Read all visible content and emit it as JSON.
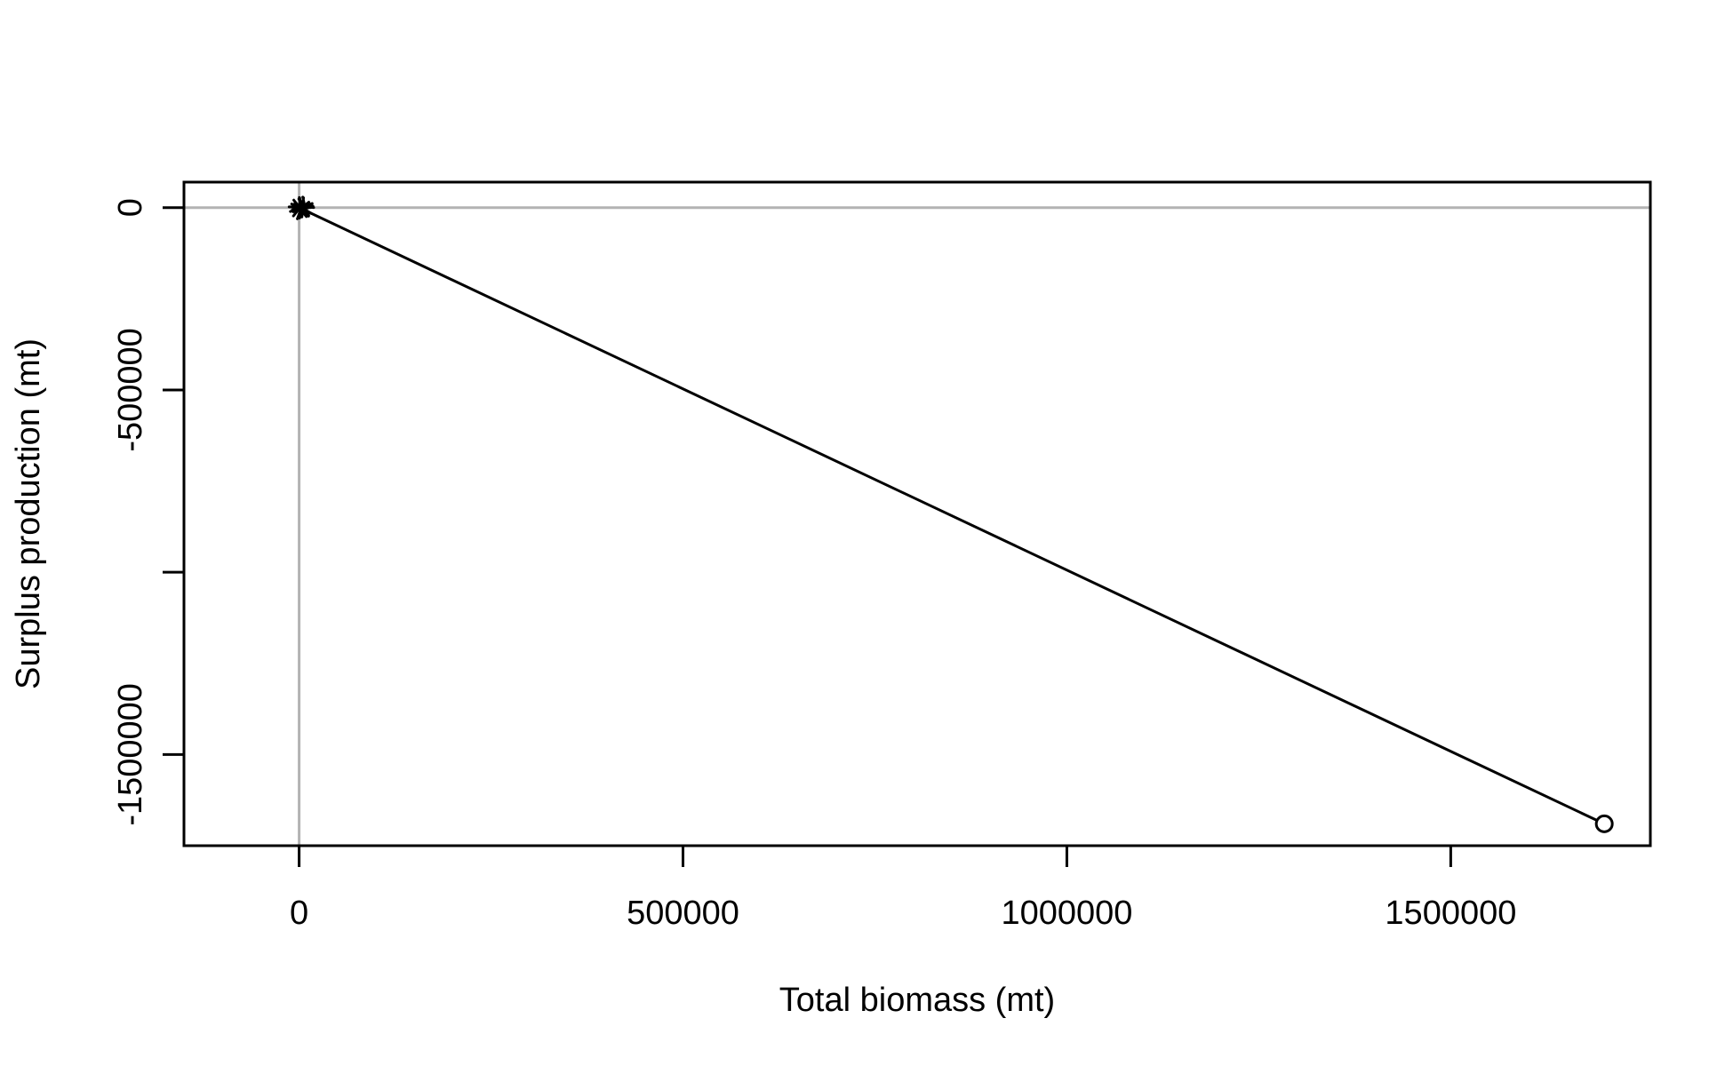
{
  "chart_data": {
    "type": "line",
    "title": "",
    "xlabel": "Total biomass (mt)",
    "ylabel": "Surplus production (mt)",
    "xlim": [
      -150000,
      1760000
    ],
    "ylim": [
      -1750000,
      70000
    ],
    "x_ticks": [
      0,
      500000,
      1000000,
      1500000
    ],
    "x_tick_labels": [
      "0",
      "500000",
      "1000000",
      "1500000"
    ],
    "y_ticks": [
      0,
      -500000,
      -1000000,
      -1500000
    ],
    "y_tick_labels": [
      "0",
      "-500000",
      "",
      "-1500000"
    ],
    "reference_lines": {
      "x": 0,
      "y": 0,
      "color": "#b3b3b3"
    },
    "line_color": "#000000",
    "grid": false,
    "series": [
      {
        "x": [
          1700000,
          0,
          2000,
          4000,
          6000,
          3000,
          1000,
          3000,
          5000,
          8000,
          4000,
          1500,
          2500,
          6000,
          9000,
          3000
        ],
        "y": [
          -1690000,
          0,
          2000,
          -3000,
          1000,
          4000,
          -5000,
          -1000,
          6000,
          -2000,
          3000,
          5000,
          -4000,
          2000,
          -1000,
          0
        ],
        "start_marker": "open-circle",
        "segment_style": "arrows"
      }
    ]
  }
}
